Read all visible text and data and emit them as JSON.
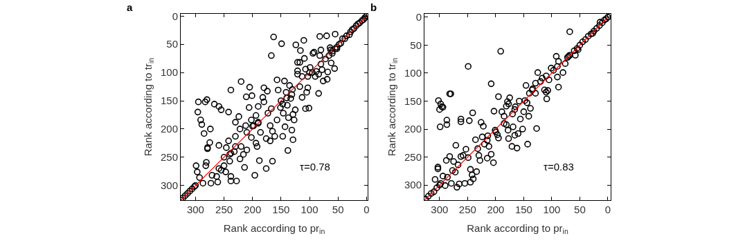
{
  "chart_data": [
    {
      "type": "scatter",
      "title": "a",
      "xlabel": "Rank according to pr$_{in}$",
      "ylabel": "Rank according to tr$_{in}$",
      "xlim": [
        326,
        -2
      ],
      "ylim": [
        326,
        -4
      ],
      "xticks": [
        300,
        250,
        200,
        150,
        100,
        50,
        0
      ],
      "yticks": [
        0,
        50,
        100,
        150,
        200,
        250,
        300
      ],
      "annotations": [
        "τ=0.78"
      ],
      "series": [
        {
          "color": "#000000",
          "marker": "circle",
          "x": [
            163,
            149,
            167,
            124,
            110,
            82,
            70,
            55,
            116,
            92,
            94,
            121,
            109,
            117,
            107,
            99,
            121,
            121,
            113,
            103,
            90,
            88,
            78,
            68,
            69,
            76,
            84,
            56,
            62,
            72,
            82,
            80,
            64,
            60,
            52,
            157,
            144,
            135,
            155,
            141,
            131,
            117,
            103,
            105,
            113,
            84,
            101,
            107,
            133,
            147,
            151,
            139,
            146,
            125,
            129,
            127,
            137,
            143,
            131,
            147,
            129,
            138,
            161,
            169,
            165,
            176,
            169,
            157,
            167,
            173,
            182,
            180,
            174,
            180,
            190,
            194,
            202,
            198,
            190,
            186,
            194,
            192,
            202,
            210,
            212,
            206,
            201,
            211,
            205,
            220,
            238,
            224,
            230,
            222,
            230,
            220,
            210,
            216,
            222,
            214,
            196,
            188,
            176,
            165,
            230,
            238,
            242,
            246,
            240,
            250,
            259,
            259,
            255,
            242,
            259,
            267,
            274,
            275,
            279,
            285,
            289,
            291,
            296,
            295,
            283,
            280,
            279,
            281,
            282,
            299,
            297,
            293,
            287,
            273,
            271,
            263,
            261,
            255,
            247,
            238,
            238,
            228,
            326,
            322,
            318,
            314,
            310,
            306,
            302,
            300,
            250,
            240,
            232,
            200,
            190,
            150,
            140,
            130,
            100,
            95,
            80,
            0,
            3,
            5,
            8,
            12,
            15,
            18,
            22,
            25,
            28,
            30,
            35,
            38,
            42,
            45,
            48,
            52,
            55,
            60,
            63,
            66
          ],
          "values": [
            37,
            49,
            70,
            51,
            43,
            36,
            35,
            32,
            61,
            64,
            66,
            82,
            75,
            82,
            94,
            91,
            97,
            103,
            107,
            107,
            107,
            98,
            95,
            99,
            112,
            115,
            103,
            93,
            83,
            76,
            70,
            60,
            56,
            66,
            58,
            113,
            115,
            123,
            131,
            135,
            139,
            125,
            127,
            135,
            144,
            137,
            163,
            164,
            146,
            156,
            162,
            158,
            172,
            166,
            174,
            184,
            180,
            196,
            202,
            213,
            219,
            238,
            213,
            194,
            204,
            217,
            221,
            184,
            164,
            172,
            144,
            152,
            133,
            127,
            160,
            176,
            184,
            194,
            188,
            206,
            225,
            231,
            215,
            206,
            194,
            162,
            141,
            143,
            126,
            116,
            131,
            178,
            188,
            200,
            213,
            231,
            237,
            245,
            253,
            268,
            282,
            256,
            270,
            257,
            231,
            243,
            221,
            233,
            257,
            265,
            270,
            229,
            166,
            170,
            160,
            156,
            200,
            224,
            233,
            208,
            192,
            184,
            170,
            152,
            152,
            148,
            235,
            259,
            265,
            265,
            276,
            286,
            296,
            296,
            282,
            284,
            294,
            273,
            276,
            284,
            292,
            292,
            326,
            322,
            318,
            314,
            310,
            306,
            302,
            300,
            250,
            245,
            240,
            195,
            190,
            150,
            145,
            130,
            100,
            100,
            85,
            0,
            3,
            6,
            8,
            12,
            14,
            17,
            22,
            24,
            28,
            33,
            35,
            40,
            40,
            48,
            50,
            55,
            58,
            62,
            60,
            70
          ]
        },
        {
          "type": "line",
          "color": "#ff0000",
          "x": [
            0,
            326
          ],
          "values": [
            0,
            326
          ]
        }
      ]
    },
    {
      "type": "scatter",
      "title": "b",
      "xlabel": "Rank according to pr$_{in}$",
      "ylabel": "Rank according to tr$_{in}$",
      "xlim": [
        327,
        -5
      ],
      "ylim": [
        327,
        -6
      ],
      "xticks": [
        300,
        250,
        200,
        150,
        100,
        50,
        0
      ],
      "yticks": [
        0,
        50,
        100,
        150,
        200,
        250,
        300
      ],
      "annotations": [
        "τ=0.83"
      ],
      "series": [
        {
          "color": "#000000",
          "marker": "circle",
          "x": [
            68,
            191,
            249,
            208,
            195,
            282,
            280,
            302,
            298,
            296,
            300,
            294,
            299,
            287,
            287,
            262,
            262,
            247,
            241,
            226,
            222,
            203,
            271,
            282,
            275,
            288,
            303,
            303,
            277,
            272,
            267,
            262,
            258,
            253,
            249,
            245,
            242,
            240,
            245,
            255,
            265,
            269,
            279,
            290,
            298,
            308,
            286,
            294,
            236,
            232,
            228,
            234,
            230,
            224,
            220,
            214,
            212,
            215,
            208,
            204,
            201,
            197,
            195,
            189,
            185,
            181,
            181,
            179,
            177,
            175,
            166,
            170,
            178,
            177,
            169,
            171,
            162,
            160,
            166,
            152,
            156,
            150,
            148,
            144,
            158,
            146,
            140,
            129,
            134,
            138,
            141,
            143,
            127,
            129,
            125,
            117,
            113,
            110,
            107,
            109,
            105,
            101,
            97,
            92,
            88,
            90,
            88,
            80,
            76,
            72,
            68,
            58,
            53,
            27,
            14,
            0,
            3,
            6,
            10,
            15,
            20,
            25,
            30,
            35,
            40,
            45,
            50,
            55,
            60,
            70,
            90,
            110,
            120,
            135,
            165,
            185,
            200,
            215,
            300,
            305,
            310,
            315,
            320,
            325
          ],
          "values": [
            26,
            61,
            88,
            119,
            142,
            137,
            137,
            149,
            155,
            160,
            165,
            161,
            196,
            184,
            192,
            182,
            187,
            185,
            171,
            188,
            195,
            168,
            229,
            249,
            258,
            256,
            268,
            271,
            274,
            277,
            264,
            249,
            247,
            236,
            251,
            272,
            282,
            289,
            295,
            297,
            298,
            304,
            297,
            301,
            297,
            290,
            286,
            284,
            219,
            235,
            256,
            276,
            247,
            214,
            227,
            212,
            231,
            252,
            245,
            260,
            202,
            210,
            216,
            169,
            177,
            192,
            159,
            151,
            155,
            144,
            165,
            173,
            202,
            217,
            196,
            231,
            234,
            208,
            211,
            200,
            182,
            169,
            149,
            153,
            150,
            122,
            136,
            136,
            128,
            163,
            177,
            227,
            199,
            118,
            99,
            109,
            130,
            134,
            131,
            146,
            112,
            91,
            95,
            70,
            79,
            107,
            125,
            99,
            83,
            72,
            68,
            68,
            58,
            29,
            9,
            0,
            3,
            5,
            10,
            15,
            20,
            25,
            30,
            34,
            40,
            44,
            50,
            56,
            60,
            70,
            88,
            105,
            115,
            130,
            160,
            190,
            205,
            220,
            300,
            305,
            312,
            315,
            320,
            325
          ]
        },
        {
          "type": "line",
          "color": "#ff0000",
          "x": [
            0,
            327
          ],
          "values": [
            0,
            327
          ]
        }
      ]
    }
  ]
}
